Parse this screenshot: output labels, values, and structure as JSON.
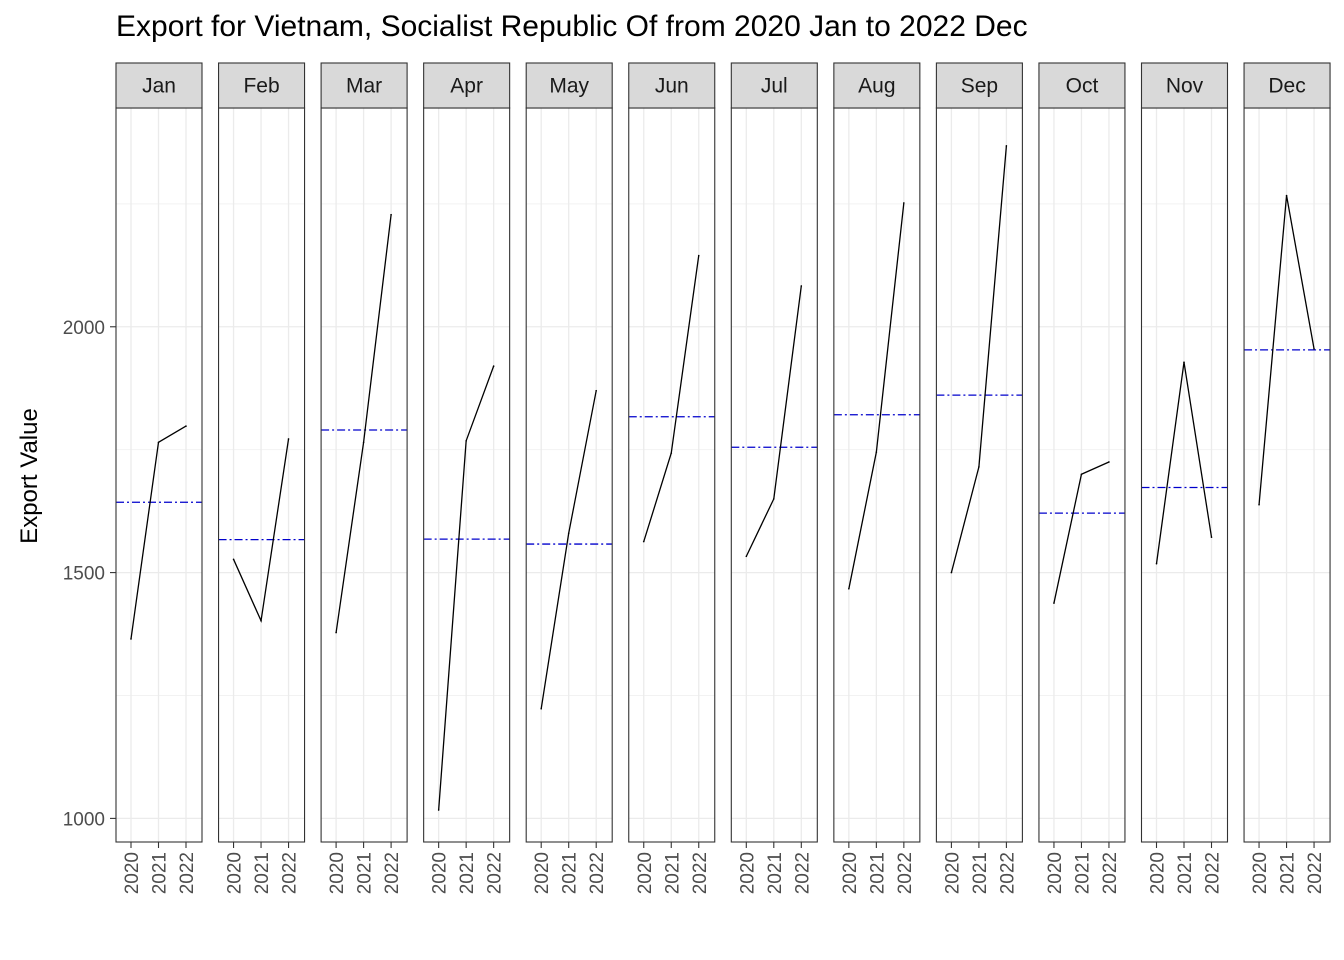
{
  "chart_data": {
    "type": "line",
    "title": "Export for Vietnam, Socialist Republic Of from 2020 Jan to 2022 Dec",
    "ylabel": "Export Value",
    "xlabel": "",
    "ylim": [
      952,
      2445
    ],
    "yticks": [
      1000,
      1500,
      2000
    ],
    "x": [
      "2020",
      "2021",
      "2022"
    ],
    "facet_by": "month",
    "grid": true,
    "colors": {
      "series": "#000000",
      "mean_line": "#0000cc",
      "strip_bg": "#d9d9d9",
      "grid": "#ebebeb",
      "panel_border": "#333333"
    },
    "panels": [
      {
        "month": "Jan",
        "values": [
          1365,
          1765,
          1798
        ],
        "mean": 1643
      },
      {
        "month": "Feb",
        "values": [
          1527,
          1402,
          1772
        ],
        "mean": 1567
      },
      {
        "month": "Mar",
        "values": [
          1378,
          1765,
          2228
        ],
        "mean": 1790
      },
      {
        "month": "Apr",
        "values": [
          1017,
          1768,
          1920
        ],
        "mean": 1568
      },
      {
        "month": "May",
        "values": [
          1223,
          1580,
          1870
        ],
        "mean": 1558
      },
      {
        "month": "Jun",
        "values": [
          1563,
          1743,
          2145
        ],
        "mean": 1817
      },
      {
        "month": "Jul",
        "values": [
          1533,
          1650,
          2083
        ],
        "mean": 1755
      },
      {
        "month": "Aug",
        "values": [
          1467,
          1745,
          2252
        ],
        "mean": 1821
      },
      {
        "month": "Sep",
        "values": [
          1500,
          1715,
          2368
        ],
        "mean": 1861
      },
      {
        "month": "Oct",
        "values": [
          1438,
          1700,
          1725
        ],
        "mean": 1621
      },
      {
        "month": "Nov",
        "values": [
          1518,
          1928,
          1572
        ],
        "mean": 1673
      },
      {
        "month": "Dec",
        "values": [
          1638,
          2267,
          1955
        ],
        "mean": 1953
      }
    ]
  }
}
